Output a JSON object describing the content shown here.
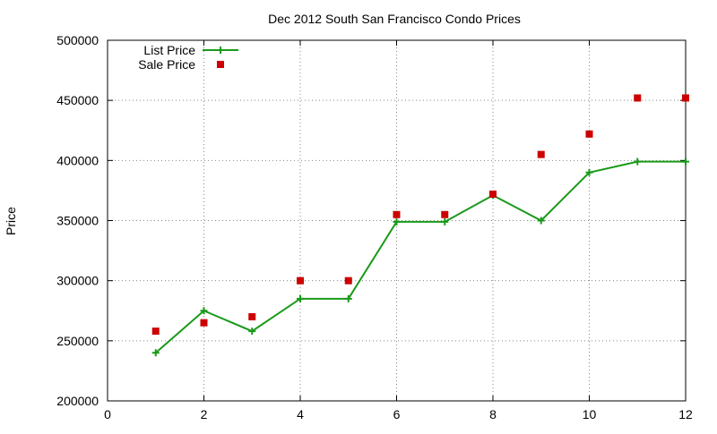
{
  "chart_data": {
    "type": "line",
    "title": "Dec 2012 South San Francisco Condo Prices",
    "xlabel": "",
    "ylabel": "Price",
    "xlim": [
      0,
      12
    ],
    "ylim": [
      200000,
      500000
    ],
    "x_ticks": [
      0,
      2,
      4,
      6,
      8,
      10,
      12
    ],
    "y_ticks": [
      200000,
      250000,
      300000,
      350000,
      400000,
      450000,
      500000
    ],
    "grid": true,
    "legend_position": "top-left",
    "series": [
      {
        "name": "List Price",
        "style": "line+plus",
        "color": "#1a9a1a",
        "x": [
          1,
          2,
          3,
          4,
          5,
          6,
          7,
          8,
          9,
          10,
          11,
          12
        ],
        "y": [
          240000,
          275000,
          258000,
          285000,
          285000,
          349000,
          349000,
          371000,
          350000,
          390000,
          399000,
          399000
        ]
      },
      {
        "name": "Sale Price",
        "style": "square",
        "color": "#cc0000",
        "x": [
          1,
          2,
          3,
          4,
          5,
          6,
          7,
          8,
          9,
          10,
          11,
          12
        ],
        "y": [
          258000,
          265000,
          270000,
          300000,
          300000,
          355000,
          355000,
          372000,
          405000,
          422000,
          452000,
          452000
        ]
      }
    ]
  }
}
